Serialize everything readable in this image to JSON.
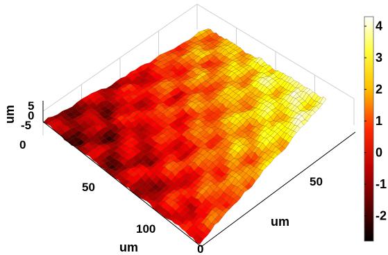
{
  "chart_data": {
    "type": "surface",
    "title": "",
    "colormap": "hot",
    "x_axis": {
      "label": "um",
      "ticks": [
        "0",
        "50",
        "100"
      ],
      "range": [
        0,
        110
      ]
    },
    "y_axis": {
      "label": "um",
      "ticks": [
        "0",
        "50"
      ],
      "range": [
        0,
        80
      ]
    },
    "z_axis": {
      "label": "um",
      "ticks": [
        "-5",
        "0",
        "5"
      ],
      "range": [
        -5,
        5
      ]
    },
    "colorbar": {
      "ticks": [
        "-2",
        "-1",
        "0",
        "1",
        "2",
        "3",
        "4"
      ],
      "range": [
        -2.8,
        4.3
      ]
    },
    "surface_trend": {
      "low_corner_value": -1.2,
      "high_corner_value": 3.6
    }
  }
}
